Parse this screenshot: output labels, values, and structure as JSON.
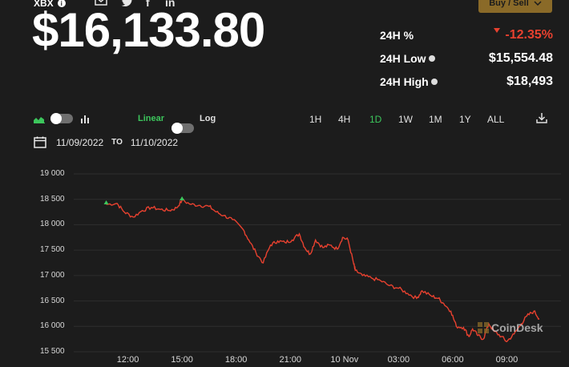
{
  "header": {
    "ticker": "XBX",
    "price": "$16,133.80",
    "buy_sell_label": "Buy / Sell",
    "share_icons": [
      "mail-icon",
      "twitter-icon",
      "facebook-icon",
      "linkedin-icon"
    ],
    "linkedin_label": "in",
    "facebook_label": "f"
  },
  "stats": [
    {
      "label": "24H %",
      "value": "-12.35%",
      "direction": "down"
    },
    {
      "label": "24H Low",
      "value": "$15,554.48"
    },
    {
      "label": "24H High",
      "value": "$18,493"
    }
  ],
  "controls": {
    "linear_label": "Linear",
    "log_label": "Log",
    "ranges": [
      "1H",
      "4H",
      "1D",
      "1W",
      "1M",
      "1Y",
      "ALL"
    ],
    "active_range": "1D"
  },
  "date_range": {
    "from": "11/09/2022",
    "to_label": "TO",
    "to": "11/10/2022"
  },
  "watermark": "CoinDesk",
  "colors": {
    "background": "#1c1c1c",
    "line": "#e8412f",
    "active": "#3cc65c",
    "buy_button": "#8a6a28"
  },
  "chart_data": {
    "type": "line",
    "ytick_labels": [
      "19 000",
      "18 500",
      "18 000",
      "17 500",
      "17 000",
      "16 500",
      "16 000",
      "15 500"
    ],
    "yticks": [
      19000,
      18500,
      18000,
      17500,
      17000,
      16500,
      16000,
      15500
    ],
    "xtick_labels": [
      "12:00",
      "15:00",
      "18:00",
      "21:00",
      "10 Nov",
      "03:00",
      "06:00",
      "09:00"
    ],
    "xticks": [
      12,
      15,
      18,
      21,
      24,
      27,
      30,
      33
    ],
    "ylim": [
      15500,
      19000
    ],
    "xlim": [
      9,
      36
    ],
    "series": [
      {
        "x": [
          10.8,
          11.4,
          11.8,
          12.3,
          12.8,
          13.3,
          13.8,
          14.3,
          14.7,
          15.0,
          15.5,
          16.0,
          16.5,
          16.9,
          17.3,
          17.8,
          18.4,
          18.7,
          19.1,
          19.5,
          19.9,
          20.3,
          20.7,
          21.1,
          21.5,
          21.8,
          22.1,
          22.4,
          22.8,
          23.2,
          23.6,
          23.9,
          24.2,
          24.5,
          24.6,
          25.0,
          25.5,
          26.0,
          26.5,
          27.0,
          27.5,
          28.0,
          28.3,
          28.8,
          29.2,
          29.5,
          29.9,
          30.2,
          30.6,
          30.9,
          31.1,
          31.4,
          31.7,
          32.0,
          32.3,
          32.7,
          33.0,
          33.4,
          33.8,
          34.1,
          34.5,
          34.8
        ],
        "y": [
          18400,
          18420,
          18250,
          18150,
          18280,
          18340,
          18300,
          18280,
          18330,
          18480,
          18400,
          18380,
          18360,
          18250,
          18180,
          18100,
          17900,
          17700,
          17450,
          17250,
          17600,
          17680,
          17650,
          17700,
          17820,
          17550,
          17420,
          17700,
          17550,
          17600,
          17520,
          17750,
          17700,
          17250,
          17100,
          17000,
          16950,
          16900,
          16800,
          16750,
          16650,
          16550,
          16700,
          16600,
          16550,
          16450,
          16300,
          16000,
          15980,
          15800,
          15950,
          15820,
          15750,
          16050,
          15900,
          15800,
          15700,
          15850,
          16050,
          16200,
          16300,
          16150
        ]
      }
    ]
  }
}
